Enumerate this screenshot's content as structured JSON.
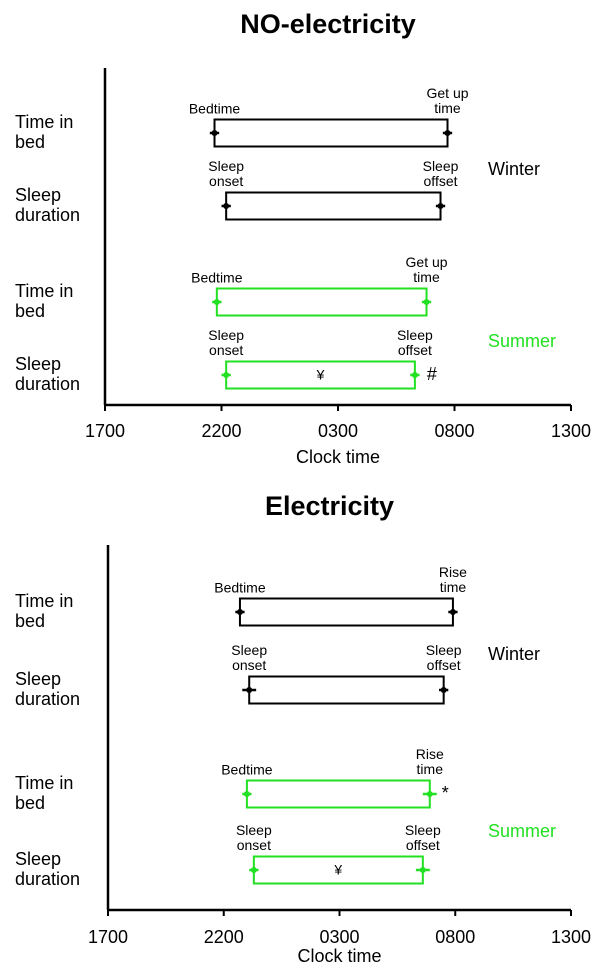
{
  "chart_data": [
    {
      "type": "range-bar",
      "title": "NO-electricity",
      "xlabel": "Clock time",
      "xlim": [
        17,
        37
      ],
      "xticks": [
        {
          "value": 17,
          "label": "1700"
        },
        {
          "value": 22,
          "label": "2200"
        },
        {
          "value": 27,
          "label": "0300"
        },
        {
          "value": 32,
          "label": "0800"
        },
        {
          "value": 37,
          "label": "1300"
        }
      ],
      "groups": [
        {
          "name": "Winter",
          "color": "#000000",
          "bars": [
            {
              "label": "Time in bed",
              "start": 21.7,
              "end": 31.7,
              "start_err": 0.2,
              "end_err": 0.2,
              "start_label": "Bedtime",
              "end_label": "Get up time"
            },
            {
              "label": "Sleep duration",
              "start": 22.2,
              "end": 31.4,
              "start_err": 0.2,
              "end_err": 0.2,
              "start_label": "Sleep onset",
              "end_label": "Sleep offset"
            }
          ]
        },
        {
          "name": "Summer",
          "color": "#22e022",
          "bars": [
            {
              "label": "Time in bed",
              "start": 21.8,
              "end": 30.8,
              "start_err": 0.2,
              "end_err": 0.2,
              "start_label": "Bedtime",
              "end_label": "Get up time"
            },
            {
              "label": "Sleep duration",
              "start": 22.2,
              "end": 30.3,
              "start_err": 0.2,
              "end_err": 0.2,
              "start_label": "Sleep onset",
              "end_label": "Sleep offset",
              "inner_note": "¥",
              "side_note": "#"
            }
          ]
        }
      ]
    },
    {
      "type": "range-bar",
      "title": "Electricity",
      "xlabel": "Clock time",
      "xlim": [
        17,
        37
      ],
      "xticks": [
        {
          "value": 17,
          "label": "1700"
        },
        {
          "value": 22,
          "label": "2200"
        },
        {
          "value": 27,
          "label": "0300"
        },
        {
          "value": 32,
          "label": "0800"
        },
        {
          "value": 37,
          "label": "1300"
        }
      ],
      "groups": [
        {
          "name": "Winter",
          "color": "#000000",
          "bars": [
            {
              "label": "Time in bed",
              "start": 22.7,
              "end": 31.9,
              "start_err": 0.2,
              "end_err": 0.2,
              "start_label": "Bedtime",
              "end_label": "Rise time"
            },
            {
              "label": "Sleep duration",
              "start": 23.1,
              "end": 31.5,
              "start_err": 0.3,
              "end_err": 0.2,
              "start_label": "Sleep onset",
              "end_label": "Sleep offset"
            }
          ]
        },
        {
          "name": "Summer",
          "color": "#22e022",
          "bars": [
            {
              "label": "Time in bed",
              "start": 23.0,
              "end": 30.9,
              "start_err": 0.2,
              "end_err": 0.3,
              "start_label": "Bedtime",
              "end_label": "Rise time",
              "side_note": "*"
            },
            {
              "label": "Sleep duration",
              "start": 23.3,
              "end": 30.6,
              "start_err": 0.2,
              "end_err": 0.3,
              "start_label": "Sleep onset",
              "end_label": "Sleep offset",
              "inner_note": "¥"
            }
          ]
        }
      ]
    }
  ]
}
